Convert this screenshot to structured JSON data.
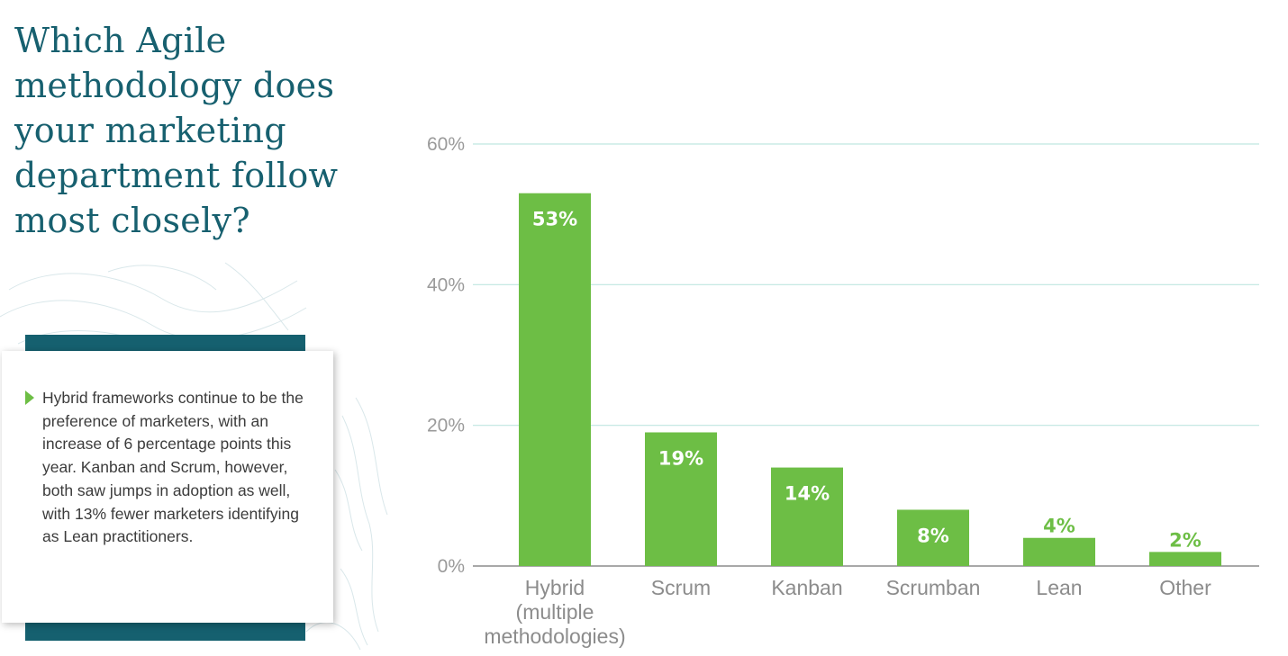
{
  "title": "Which Agile methodology does your marketing department follow most closely?",
  "note": {
    "text": "Hybrid frameworks continue to be the preference of marketers, with an increase of 6 percentage points this year. Kanban and Scrum, however, both saw jumps in adoption as well, with 13% fewer marketers identifying as Lean practitioners."
  },
  "colors": {
    "title": "#17606f",
    "band": "#15606f",
    "bar": "#6dbe45",
    "bullet": "#6dbe45",
    "gridline": "#bfe6e0",
    "baseline": "#8c8c8c",
    "data_label_inside": "#ffffff",
    "data_label_outside": "#6dbe45"
  },
  "icons": {
    "bullet": "triangle-bullet-icon",
    "background": "topographic-contour-pattern"
  },
  "chart_data": {
    "type": "bar",
    "title": "",
    "xlabel": "",
    "ylabel": "",
    "categories": [
      [
        "Hybrid",
        "(multiple",
        "methodologies)"
      ],
      [
        "Scrum"
      ],
      [
        "Kanban"
      ],
      [
        "Scrumban"
      ],
      [
        "Lean"
      ],
      [
        "Other"
      ]
    ],
    "values": [
      53,
      19,
      14,
      8,
      4,
      2
    ],
    "data_labels": [
      "53%",
      "19%",
      "14%",
      "8%",
      "4%",
      "2%"
    ],
    "ylim": [
      0,
      60
    ],
    "yticks": [
      0,
      20,
      40,
      60
    ],
    "ytick_labels": [
      "0%",
      "20%",
      "40%",
      "60%"
    ],
    "grid": true,
    "legend": "none"
  }
}
